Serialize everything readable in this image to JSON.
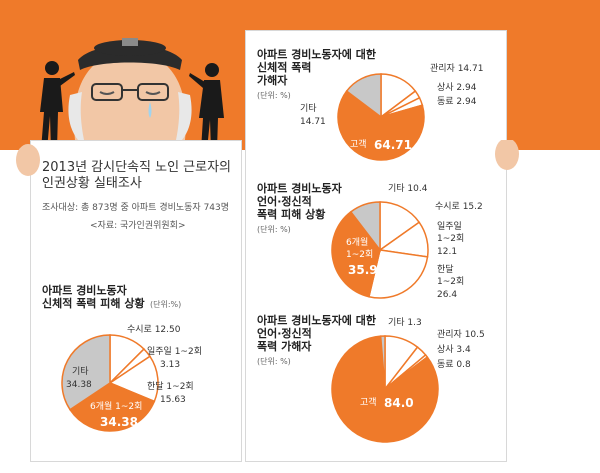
{
  "header": {
    "title_line1": "2013년 감시단속직 노인 근로자의",
    "title_line2": "인권상황 실태조사",
    "subject": "조사대상: 총 873명 중 아파트 경비노동자 743명",
    "source": "<자료: 국가인권위원회>"
  },
  "colors": {
    "orange": "#ef7a2a",
    "grey": "#c8c8c8",
    "white": "#ffffff"
  },
  "chart_data": [
    {
      "type": "pie",
      "title": "아파트 경비노동자 신체적 폭력 피해 상황",
      "title_line1": "아파트 경비노동자",
      "title_line2": "신체적 폭력 피해 상황",
      "unit": "(단위:%)",
      "slices": [
        {
          "label": "6개월 1~2회",
          "value": 34.38
        },
        {
          "label": "기타",
          "value": 34.38
        },
        {
          "label": "수시로",
          "value": 12.5
        },
        {
          "label": "일주일 1~2회",
          "value": 3.13
        },
        {
          "label": "한달 1~2회",
          "value": 15.63
        }
      ]
    },
    {
      "type": "pie",
      "title": "아파트 경비노동자에 대한 신체적 폭력 가해자",
      "title_line1": "아파트 경비노동자에 대한",
      "title_line2": "신체적 폭력",
      "title_line3": "가해자",
      "unit": "(단위: %)",
      "slices": [
        {
          "label": "고객",
          "value": 64.71
        },
        {
          "label": "기타",
          "value": 14.71
        },
        {
          "label": "관리자",
          "value": 14.71
        },
        {
          "label": "상사",
          "value": 2.94
        },
        {
          "label": "동료",
          "value": 2.94
        }
      ]
    },
    {
      "type": "pie",
      "title": "아파트 경비노동자 언어·정신적 폭력 피해 상황",
      "title_line1": "아파트 경비노동자",
      "title_line2": "언어·정신적",
      "title_line3": "폭력 피해 상황",
      "unit": "(단위: %)",
      "slices": [
        {
          "label": "6개월 1~2회",
          "value": 35.9
        },
        {
          "label": "기타",
          "value": 10.4
        },
        {
          "label": "수시로",
          "value": 15.2
        },
        {
          "label": "일주일 1~2회",
          "value": 12.1
        },
        {
          "label": "한달 1~2회",
          "value": 26.4
        }
      ]
    },
    {
      "type": "pie",
      "title": "아파트 경비노동자에 대한 언어·정신적 폭력 가해자",
      "title_line1": "아파트 경비노동자에 대한",
      "title_line2": "언어·정신적",
      "title_line3": "폭력 가해자",
      "unit": "(단위: %)",
      "slices": [
        {
          "label": "고객",
          "value": 84.0
        },
        {
          "label": "기타",
          "value": 1.3
        },
        {
          "label": "관리자",
          "value": 10.5
        },
        {
          "label": "상사",
          "value": 3.4
        },
        {
          "label": "동료",
          "value": 0.8
        }
      ]
    }
  ],
  "labels": {
    "c1": {
      "sosiro": "수시로  12.50",
      "week1": "일주일 1~2회",
      "week2": "3.13",
      "month1": "한달 1~2회",
      "month2": "15.63",
      "gita1": "기타",
      "gita2": "34.38",
      "six1": "6개월 1~2회",
      "six2": "34.38"
    },
    "c2": {
      "gwan": "관리자 14.71",
      "sangsa": "상사 2.94",
      "dong": "동료 2.94",
      "gita1": "기타",
      "gita2": "14.71",
      "gogaek": "고객",
      "gogaek_v": "64.71"
    },
    "c3": {
      "gita": "기타 10.4",
      "sosiro": "수시로 15.2",
      "week1": "일주일",
      "week2": "1~2회",
      "week3": "12.1",
      "month1": "한달",
      "month2": "1~2회",
      "month3": "26.4",
      "six1": "6개월",
      "six2": "1~2회",
      "six3": "35.9"
    },
    "c4": {
      "gita": "기타 1.3",
      "gwan": "관리자 10.5",
      "sangsa": "상사 3.4",
      "dong": "동료 0.8",
      "gogaek": "고객",
      "gogaek_v": "84.0"
    }
  }
}
